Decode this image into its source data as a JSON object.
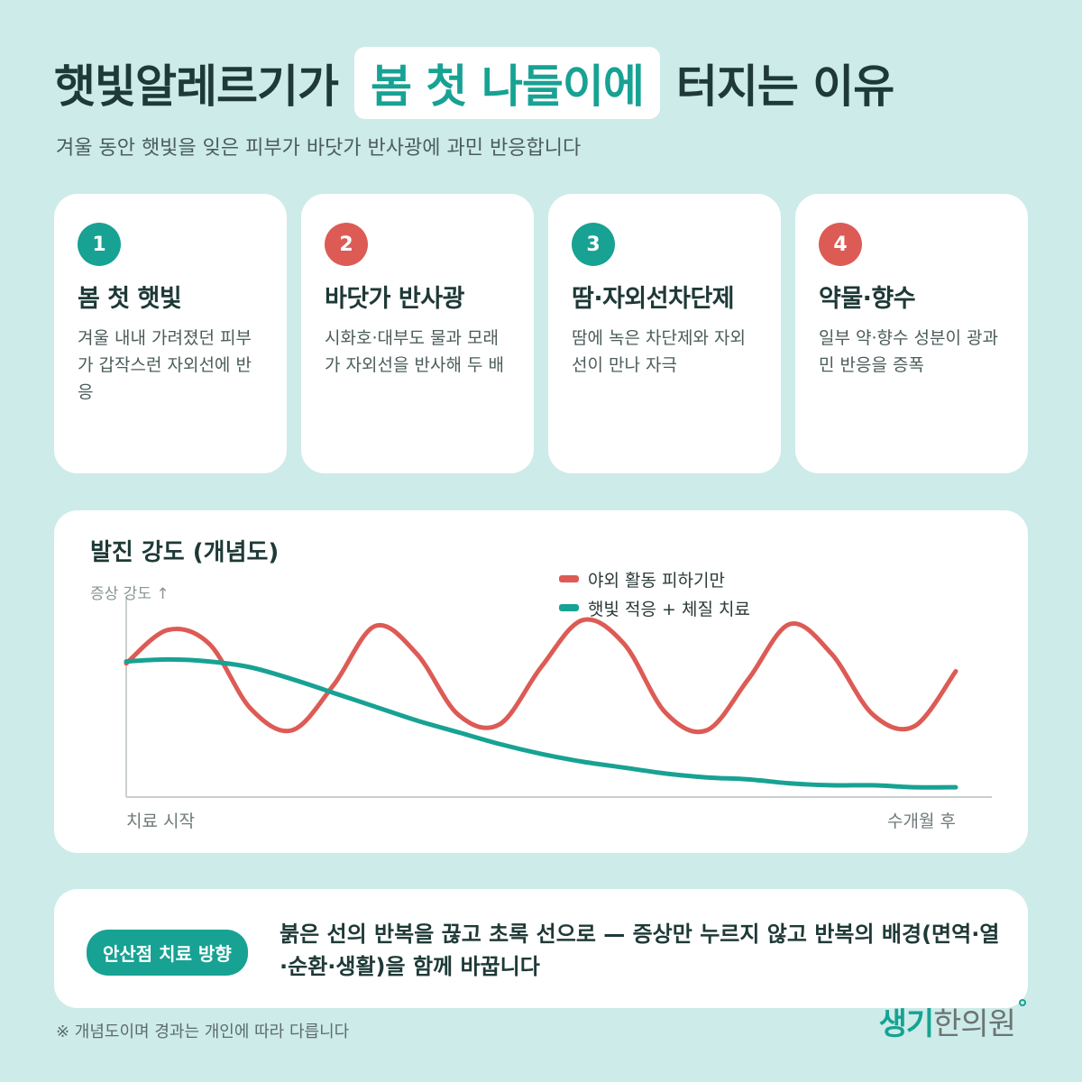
{
  "header": {
    "title_before": "햇빛알레르기가",
    "title_highlight": "봄 첫 나들이에",
    "title_after": "터지는 이유",
    "subtitle": "겨울 동안 햇빛을 잊은 피부가 바닷가 반사광에 과민 반응합니다"
  },
  "cards": [
    {
      "num": "1",
      "title": "봄 첫 햇빛",
      "body": "겨울 내내 가려졌던 피부가 갑작스런 자외선에 반응",
      "color": "#17a293"
    },
    {
      "num": "2",
      "title": "바닷가 반사광",
      "body": "시화호·대부도 물과 모래가 자외선을 반사해 두 배",
      "color": "#dd5b55"
    },
    {
      "num": "3",
      "title": "땀·자외선차단제",
      "body": "땀에 녹은 차단제와 자외선이 만나 자극",
      "color": "#17a293"
    },
    {
      "num": "4",
      "title": "약물·향수",
      "body": "일부 약·향수 성분이 광과민 반응을 증폭",
      "color": "#dd5b55"
    }
  ],
  "chart_data": {
    "type": "line",
    "title": "발진 강도 (개념도)",
    "ylabel": "증상 강도 ↑",
    "x_start_label": "치료 시작",
    "x_end_label": "수개월 후",
    "xlim": [
      0,
      1
    ],
    "ylim": [
      0,
      1
    ],
    "grid": false,
    "legend_position": "top-right",
    "x": [
      0.0,
      0.05,
      0.1,
      0.15,
      0.2,
      0.25,
      0.3,
      0.35,
      0.4,
      0.45,
      0.5,
      0.55,
      0.6,
      0.65,
      0.7,
      0.75,
      0.8,
      0.85,
      0.9,
      0.95,
      1.0
    ],
    "series": [
      {
        "name": "야외 활동 피하기만",
        "color": "#dd5b55",
        "values": [
          0.68,
          0.85,
          0.78,
          0.45,
          0.34,
          0.57,
          0.87,
          0.73,
          0.42,
          0.37,
          0.66,
          0.9,
          0.78,
          0.43,
          0.34,
          0.6,
          0.88,
          0.73,
          0.42,
          0.36,
          0.64
        ]
      },
      {
        "name": "햇빛 적응 + 체질 치료",
        "color": "#17a293",
        "values": [
          0.69,
          0.7,
          0.69,
          0.66,
          0.6,
          0.53,
          0.46,
          0.39,
          0.33,
          0.27,
          0.22,
          0.18,
          0.15,
          0.12,
          0.1,
          0.09,
          0.07,
          0.06,
          0.06,
          0.05,
          0.05
        ]
      }
    ]
  },
  "bottom": {
    "pill": "안산점 치료 방향",
    "text": "붉은 선의 반복을 끊고 초록 선으로 — 증상만 누르지 않고 반복의 배경(면역·열·순환·생활)을 함께 바꿉니다"
  },
  "footnote": "※ 개념도이며 경과는 개인에 따라 다릅니다",
  "logo": {
    "part1": "생기",
    "part2": "한의원"
  }
}
